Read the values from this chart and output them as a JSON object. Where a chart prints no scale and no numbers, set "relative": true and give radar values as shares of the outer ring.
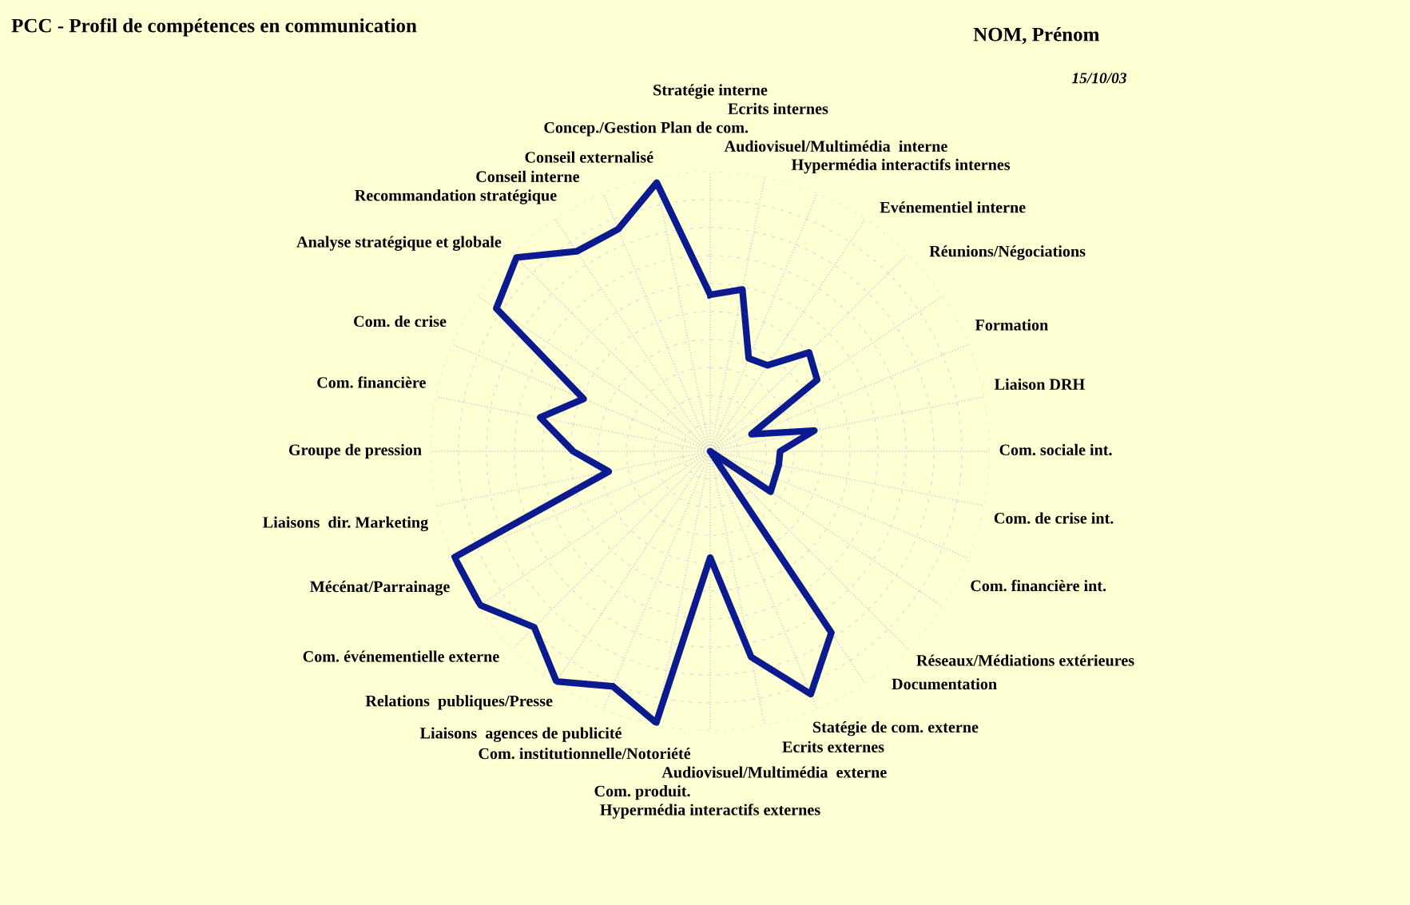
{
  "chart_data": {
    "type": "radar",
    "title": "PCC - Profil de compétences en communication",
    "annotations": [
      "NOM, Prénom",
      "15/10/03"
    ],
    "categories": [
      "Stratégie interne",
      "Ecrits internes",
      "Audiovisuel/Multimédia  interne",
      "Hypermédia interactifs internes",
      "Evénementiel interne",
      "Réunions/Négociations",
      "Formation",
      "Liaison DRH",
      "Com. sociale int.",
      "Com. de crise int.",
      "Com. financière int.",
      "Réseaux/Médiations extérieures",
      "Documentation",
      "Statégie de com. externe",
      "Ecrits externes",
      "Audiovisuel/Multimédia  externe",
      "Hypermédia interactifs externes",
      "Com. produit.",
      "Com. institutionnelle/Notoriété",
      "Liaisons  agences de publicité",
      "Relations  publiques/Presse",
      "Com. événementielle externe",
      "Mécénat/Parrainage",
      "Liaisons  dir. Marketing",
      "Groupe de pression",
      "Com. financière",
      "Com. de crise",
      "Analyse stratégique et globale",
      "Recommandation stratégique",
      "Conseil interne",
      "Conseil externalisé",
      "Concep./Gestion Plan de com."
    ],
    "relative": true,
    "grid": true,
    "series": [
      {
        "color": "#0b1a8f",
        "values": [
          0.56,
          0.59,
          0.36,
          0.37,
          0.5,
          0.46,
          0.16,
          0.38,
          0.25,
          0.25,
          0.25,
          0.26,
          0,
          0.78,
          0.94,
          0.75,
          0.38,
          0.99,
          0.91,
          0.99,
          0.89,
          0.99,
          0.99,
          0.37,
          0.49,
          0.62,
          0.49,
          0.92,
          0.98,
          0.86,
          0.86,
          0.98
        ]
      }
    ]
  }
}
